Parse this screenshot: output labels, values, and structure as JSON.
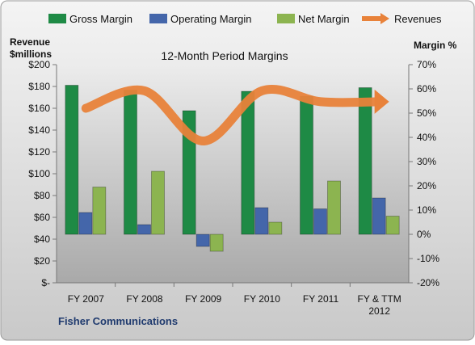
{
  "chart_data": {
    "type": "bar",
    "title": "12-Month Period Margins",
    "categories": [
      "FY 2007",
      "FY 2008",
      "FY 2009",
      "FY 2010",
      "FY 2011",
      "FY & TTM 2012"
    ],
    "y_left": {
      "label_line1": "Revenue",
      "label_line2": "$millions",
      "range": [
        0,
        200
      ],
      "ticks": [
        0,
        20,
        40,
        60,
        80,
        100,
        120,
        140,
        160,
        180,
        200
      ],
      "tick_labels": [
        "$-",
        "$20",
        "$40",
        "$60",
        "$80",
        "$100",
        "$120",
        "$140",
        "$160",
        "$180",
        "$200"
      ]
    },
    "y_right": {
      "label": "Margin %",
      "range": [
        -20,
        70
      ],
      "ticks": [
        -20,
        -10,
        0,
        10,
        20,
        30,
        40,
        50,
        60,
        70
      ],
      "tick_labels": [
        "-20%",
        "-10%",
        "0%",
        "10%",
        "20%",
        "30%",
        "40%",
        "50%",
        "60%",
        "70%"
      ]
    },
    "series": [
      {
        "name": "Gross Margin",
        "type": "bar",
        "axis": "right",
        "color": "#1e8a45",
        "values": [
          61.5,
          59.5,
          51,
          59,
          57,
          60.5
        ]
      },
      {
        "name": "Operating Margin",
        "type": "bar",
        "axis": "right",
        "color": "#4466aa",
        "values": [
          9,
          4,
          -5,
          11,
          10.5,
          15
        ]
      },
      {
        "name": "Net Margin",
        "type": "bar",
        "axis": "right",
        "color": "#8cb450",
        "values": [
          19.5,
          26,
          -7,
          5,
          22,
          7.5
        ]
      },
      {
        "name": "Revenues",
        "type": "line",
        "axis": "left",
        "color": "#e8823a",
        "values": [
          160,
          176,
          130,
          176,
          166,
          166
        ]
      }
    ],
    "legend_position": "top",
    "grid": false,
    "footer": "Fisher Communications"
  }
}
